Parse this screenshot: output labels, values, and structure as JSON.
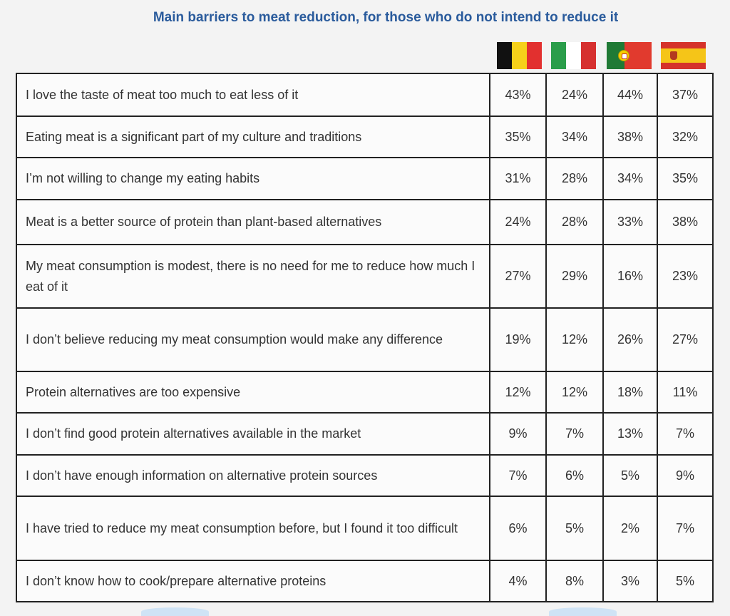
{
  "title": "Main barriers to meat reduction, for those who do not intend to reduce it",
  "chart_data": {
    "type": "table",
    "title": "Main barriers to meat reduction, for those who do not intend to reduce it",
    "columns": [
      {
        "flag": "belgium-flag",
        "colors": [
          "#111111",
          "#f6d11a",
          "#e2302f"
        ]
      },
      {
        "flag": "italy-flag",
        "colors": [
          "#2a9d4a",
          "#ffffff",
          "#d6302f"
        ]
      },
      {
        "flag": "portugal-flag",
        "colors": [
          "#1f7a35",
          "#e13a2e"
        ]
      },
      {
        "flag": "spain-flag",
        "colors": [
          "#d5322b",
          "#f5c518"
        ]
      }
    ],
    "rows": [
      {
        "label": "I love the taste of meat too much to eat less of it",
        "values": [
          "43%",
          "24%",
          "44%",
          "37%"
        ]
      },
      {
        "label": "Eating meat is a significant part of my culture and traditions",
        "values": [
          "35%",
          "34%",
          "38%",
          "32%"
        ]
      },
      {
        "label": "I’m not willing to change my eating habits",
        "values": [
          "31%",
          "28%",
          "34%",
          "35%"
        ]
      },
      {
        "label": "Meat is a better source of protein than plant-based alternatives",
        "values": [
          "24%",
          "28%",
          "33%",
          "38%"
        ]
      },
      {
        "label": "My meat consumption is modest, there is no need for me to reduce how much I eat of it",
        "values": [
          "27%",
          "29%",
          "16%",
          "23%"
        ]
      },
      {
        "label": "I don’t believe reducing my meat consumption would make any difference",
        "values": [
          "19%",
          "12%",
          "26%",
          "27%"
        ]
      },
      {
        "label": "Protein alternatives are too expensive",
        "values": [
          "12%",
          "12%",
          "18%",
          "11%"
        ]
      },
      {
        "label": "I don’t find good protein alternatives available in the market",
        "values": [
          "9%",
          "7%",
          "13%",
          "7%"
        ]
      },
      {
        "label": "I don’t have enough information on alternative protein sources",
        "values": [
          "7%",
          "6%",
          "5%",
          "9%"
        ]
      },
      {
        "label": "I have tried to reduce my meat consumption before, but I found it too difficult",
        "values": [
          "6%",
          "5%",
          "2%",
          "7%"
        ]
      },
      {
        "label": "I don’t know how to cook/prepare alternative proteins",
        "values": [
          "4%",
          "8%",
          "3%",
          "5%"
        ]
      }
    ]
  }
}
